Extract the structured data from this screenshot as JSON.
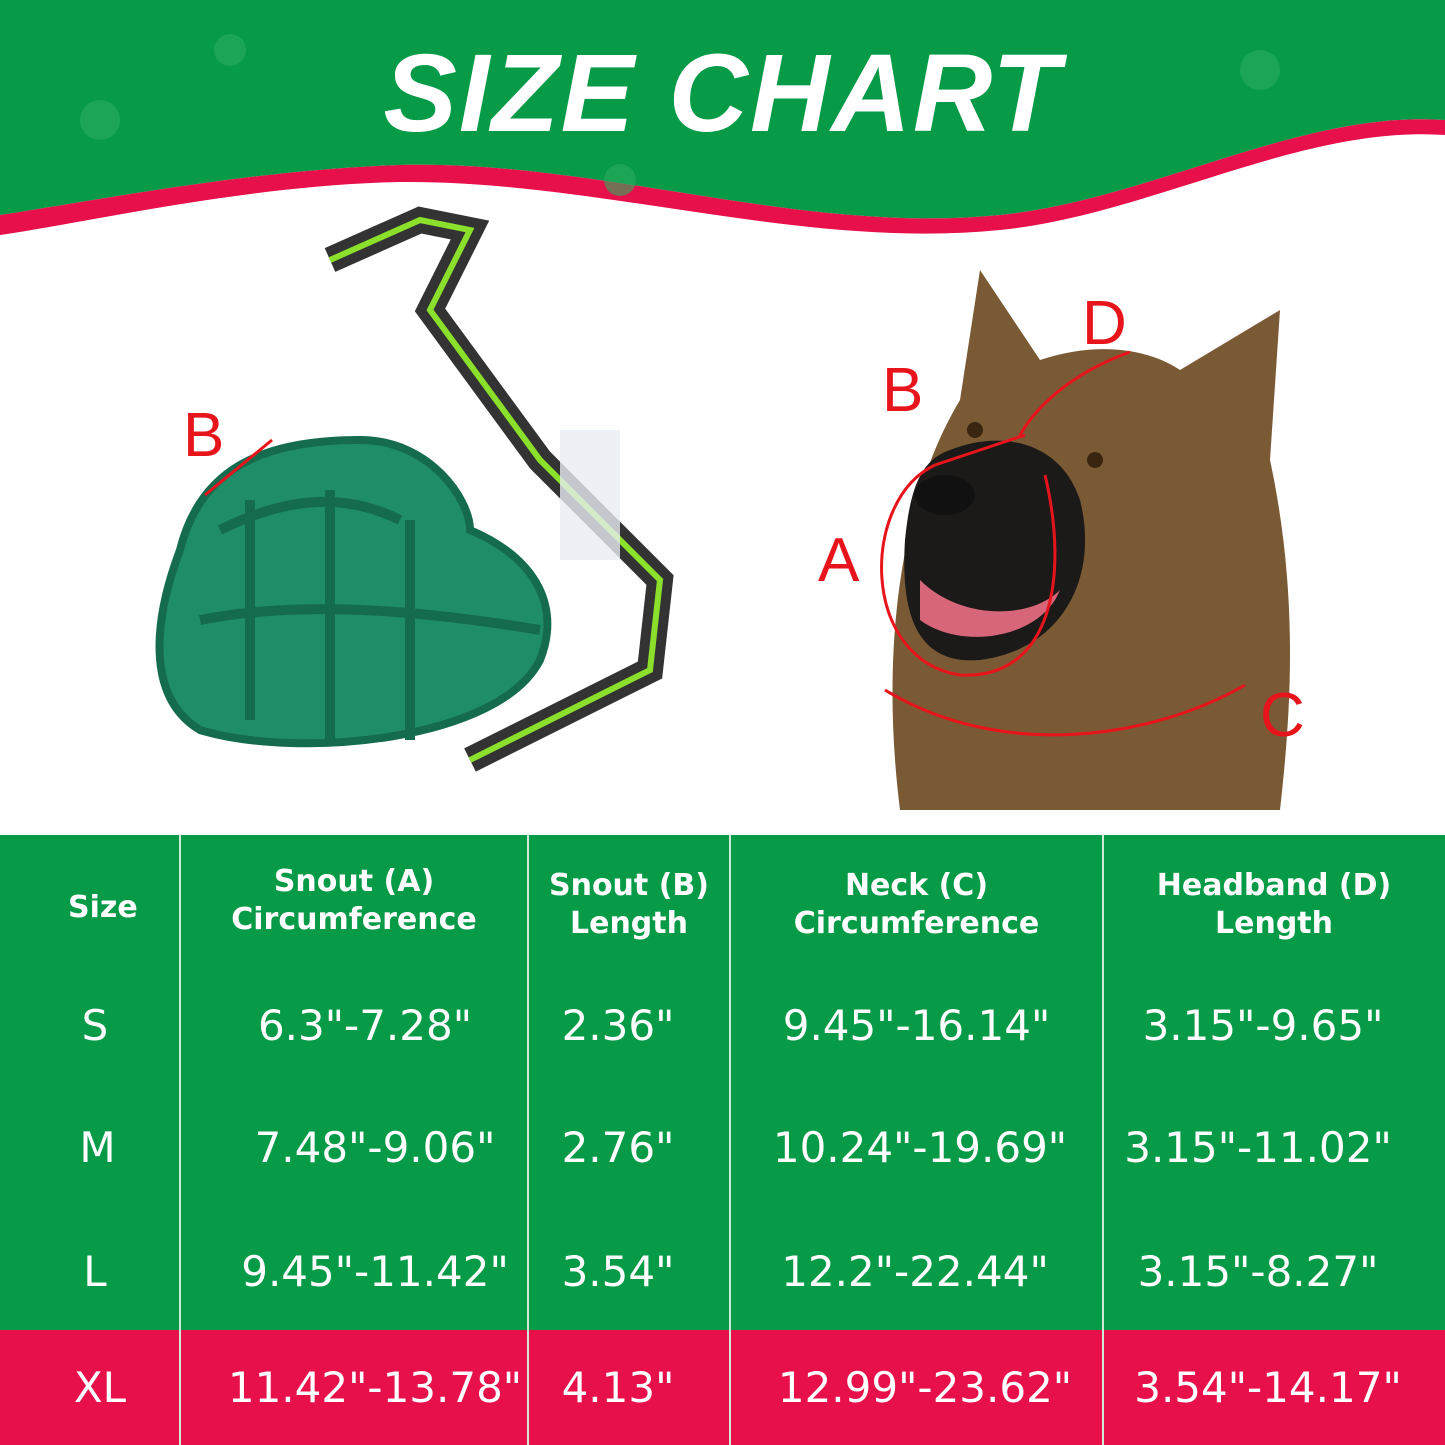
{
  "title": "SIZE CHART",
  "colors": {
    "green": "#079a47",
    "pink": "#e8104a",
    "label_red": "#e8141c"
  },
  "diagram_labels": {
    "muzzle_b": "B",
    "dog_a": "A",
    "dog_b": "B",
    "dog_c": "C",
    "dog_d": "D"
  },
  "table": {
    "headers": [
      "Size",
      "Snout  (A)\nCircumference",
      "Snout  (B)\nLength",
      "Neck  (C)\nCircumference",
      "Headband  (D)\nLength"
    ],
    "rows": [
      [
        "S",
        "6.3\"-7.28\"",
        "2.36\"",
        "9.45\"-16.14\"",
        "3.15\"-9.65\""
      ],
      [
        "M",
        "7.48\"-9.06\"",
        "2.76\"",
        "10.24\"-19.69\"",
        "3.15\"-11.02\""
      ],
      [
        "L",
        "9.45\"-11.42\"",
        "3.54\"",
        "12.2\"-22.44\"",
        "3.15\"-8.27\""
      ],
      [
        "XL",
        "11.42\"-13.78\"",
        "4.13\"",
        "12.99\"-23.62\"",
        "3.54\"-14.17\""
      ]
    ],
    "highlighted_row": "XL"
  }
}
